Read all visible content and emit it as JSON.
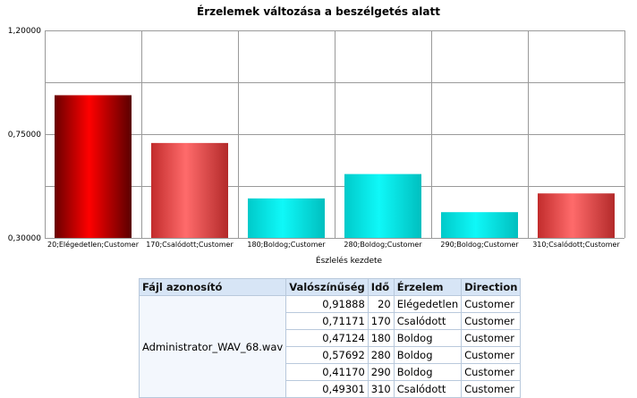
{
  "chart_data": {
    "type": "bar",
    "title": "Érzelemek változása a beszélgetés alatt",
    "xlabel": "Észlelés kezdete",
    "ylabel": "",
    "ylim": [
      0.3,
      1.2
    ],
    "y_ticks": [
      "1,20000",
      "0,75000",
      "0,30000"
    ],
    "y_tick_values": [
      1.2,
      0.75,
      0.3
    ],
    "grid": true,
    "categories": [
      "20;Elégedetlen;Customer",
      "170;Csalódott;Customer",
      "180;Boldog;Customer",
      "280;Boldog;Customer",
      "290;Boldog;Customer",
      "310;Csalódott;Customer"
    ],
    "values": [
      0.91888,
      0.71171,
      0.47124,
      0.57692,
      0.4117,
      0.49301
    ],
    "bar_colors": [
      "dark-red",
      "red",
      "cyan",
      "cyan",
      "cyan",
      "red"
    ],
    "colors": {
      "dark-red": "#cc0000",
      "red": "#e24848",
      "cyan": "#00e0e0"
    }
  },
  "table": {
    "headers": [
      "Fájl azonosító",
      "Valószínűség",
      "Idő",
      "Érzelem",
      "Direction"
    ],
    "file": "Administrator_WAV_68.wav",
    "rows": [
      [
        "0,91888",
        "20",
        "Elégedetlen",
        "Customer"
      ],
      [
        "0,71171",
        "170",
        "Csalódott",
        "Customer"
      ],
      [
        "0,47124",
        "180",
        "Boldog",
        "Customer"
      ],
      [
        "0,57692",
        "280",
        "Boldog",
        "Customer"
      ],
      [
        "0,41170",
        "290",
        "Boldog",
        "Customer"
      ],
      [
        "0,49301",
        "310",
        "Csalódott",
        "Customer"
      ]
    ]
  }
}
